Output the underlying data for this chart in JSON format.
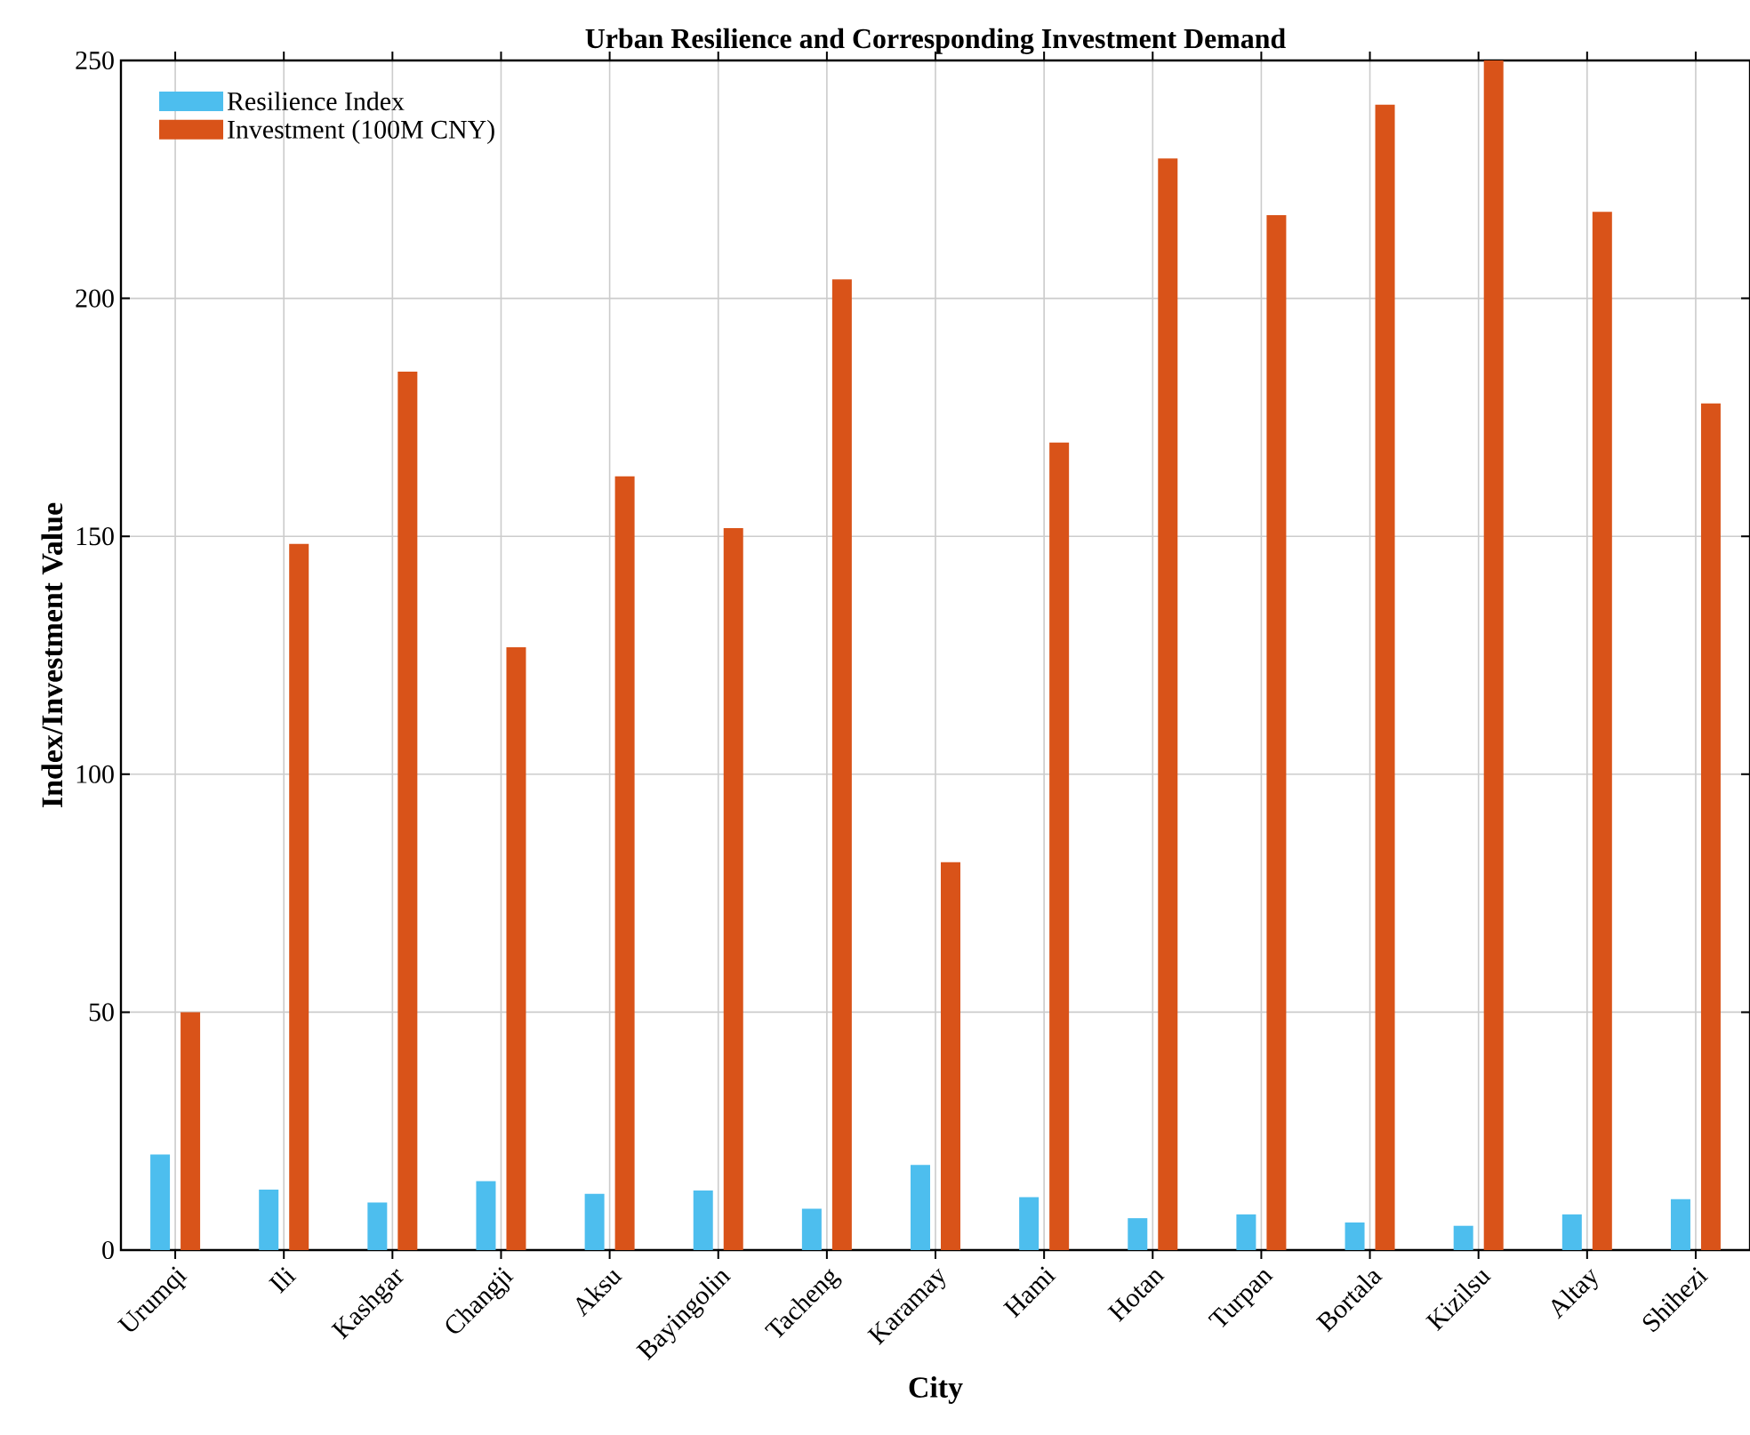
{
  "chart_data": {
    "type": "bar",
    "title": "Urban Resilience and Corresponding Investment Demand",
    "xlabel": "City",
    "ylabel": "Index/Investment Value",
    "categories": [
      "Urumqi",
      "Ili",
      "Kashgar",
      "Changji",
      "Aksu",
      "Bayingolin",
      "Tacheng",
      "Karamay",
      "Hami",
      "Hotan",
      "Turpan",
      "Bortala",
      "Kizilsu",
      "Altay",
      "Shihezi"
    ],
    "series": [
      {
        "name": "Resilience Index",
        "color": "#4dbeee",
        "values": [
          20.1,
          12.7,
          10.0,
          14.5,
          11.8,
          12.5,
          8.7,
          17.9,
          11.1,
          6.7,
          7.5,
          5.8,
          5.1,
          7.5,
          10.7
        ]
      },
      {
        "name": "Investment (100M CNY)",
        "color": "#d95319",
        "values": [
          50.0,
          148.4,
          184.6,
          126.7,
          162.6,
          151.7,
          204.0,
          81.5,
          169.7,
          229.4,
          217.5,
          240.7,
          250.0,
          218.2,
          177.9
        ]
      }
    ],
    "ylim": [
      0,
      250
    ],
    "yticks": [
      0,
      50,
      100,
      150,
      200,
      250
    ],
    "grid": true,
    "legend": "top left"
  }
}
